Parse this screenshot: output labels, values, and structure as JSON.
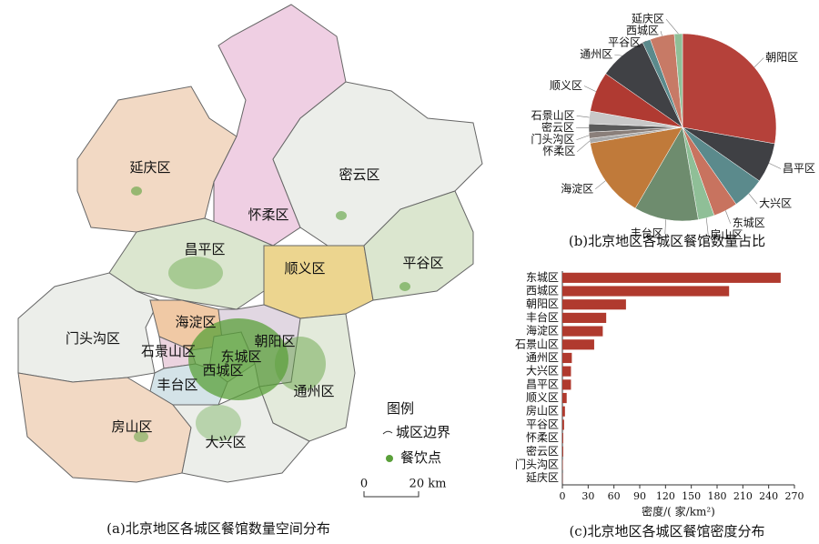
{
  "map": {
    "caption": "(a)北京地区各城区餐馆数量空间分布",
    "districts": [
      "延庆区",
      "怀柔区",
      "密云区",
      "昌平区",
      "顺义区",
      "平谷区",
      "海淀区",
      "门头沟区",
      "石景山区",
      "东城区",
      "朝阳区",
      "西城区",
      "丰台区",
      "通州区",
      "房山区",
      "大兴区"
    ],
    "legend": {
      "title": "图例",
      "boundary": "城区边界",
      "points": "餐饮点"
    },
    "scale": {
      "start": "0",
      "end": "20 km"
    }
  },
  "chart_data": [
    {
      "type": "pie",
      "title": "(b)北京地区各城区餐馆数量占比",
      "categories": [
        "朝阳区",
        "昌平区",
        "大兴区",
        "东城区",
        "房山区",
        "丰台区",
        "海淀区",
        "怀柔区",
        "门头沟区",
        "密云区",
        "石景山区",
        "顺义区",
        "通州区",
        "平谷区",
        "西城区",
        "延庆区"
      ],
      "values": [
        27.8,
        6.9,
        5.6,
        4.2,
        2.8,
        11.1,
        13.9,
        0.8,
        1.1,
        1.4,
        2.2,
        6.9,
        8.3,
        1.4,
        4.2,
        1.4
      ],
      "colors": [
        "#b5413a",
        "#3f4044",
        "#5b8a8c",
        "#c8735f",
        "#8fbf97",
        "#6e8c6e",
        "#c07a3a",
        "#a9a9a9",
        "#8a7f7a",
        "#5a5a5a",
        "#c8c8c8",
        "#b03a32",
        "#404145",
        "#5b8a8c",
        "#c77a66",
        "#8fbf97"
      ]
    },
    {
      "type": "bar",
      "horizontal": true,
      "title": "(c)北京地区各城区餐馆密度分布",
      "categories": [
        "东城区",
        "西城区",
        "朝阳区",
        "丰台区",
        "海淀区",
        "石景山区",
        "通州区",
        "大兴区",
        "昌平区",
        "顺义区",
        "房山区",
        "平谷区",
        "怀柔区",
        "密云区",
        "门头沟区",
        "延庆区"
      ],
      "values": [
        254,
        194,
        74,
        51,
        47,
        37,
        11,
        10,
        10,
        5,
        3,
        2,
        1,
        1,
        0.5,
        0.3
      ],
      "color": "#b03a2e",
      "xlabel": "密度/( 家/km²)",
      "xlim": [
        0,
        270
      ],
      "xticks": [
        0,
        30,
        60,
        90,
        120,
        150,
        180,
        210,
        240,
        270
      ]
    }
  ]
}
